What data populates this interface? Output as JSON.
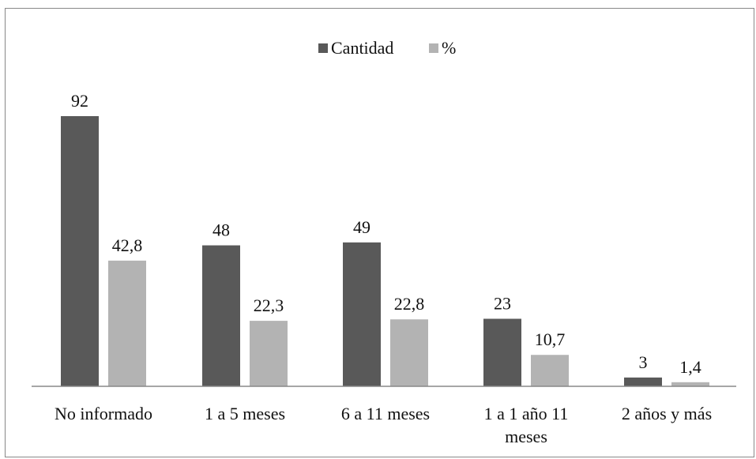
{
  "chart_data": {
    "type": "bar",
    "categories": [
      "No informado",
      "1 a 5 meses",
      "6 a 11  meses",
      "1 a 1 año 11 meses",
      "2 años y más"
    ],
    "category_lines": [
      [
        "No informado"
      ],
      [
        "1 a 5 meses"
      ],
      [
        "6 a 11  meses"
      ],
      [
        "1 a 1 año 11",
        "meses"
      ],
      [
        "2 años y más"
      ]
    ],
    "series": [
      {
        "name": "Cantidad",
        "values": [
          92,
          48,
          49,
          23,
          3
        ],
        "labels": [
          "92",
          "48",
          "49",
          "23",
          "3"
        ],
        "color": "#595959"
      },
      {
        "name": "%",
        "values": [
          42.8,
          22.3,
          22.8,
          10.7,
          1.4
        ],
        "labels": [
          "42,8",
          "22,3",
          "22,8",
          "10,7",
          "1,4"
        ],
        "color": "#b3b3b3"
      }
    ],
    "ylim": [
      0,
      92
    ],
    "legend_position": "top",
    "grid": false,
    "axis_color": "#888888"
  }
}
